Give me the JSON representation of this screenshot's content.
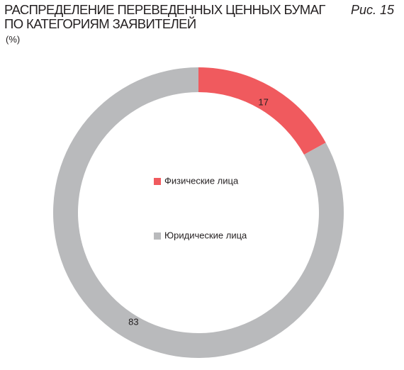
{
  "chart_data": {
    "type": "donut",
    "title": "РАСПРЕДЕЛЕНИЕ ПЕРЕВЕДЕННЫХ ЦЕННЫХ БУМАГ ПО КАТЕГОРИЯМ ЗАЯВИТЕЛЕЙ",
    "figure_label": "Рис. 15",
    "subtitle": "(%)",
    "categories": [
      "Физические лица",
      "Юридические лица"
    ],
    "values": [
      17,
      83
    ],
    "colors": [
      "#f05a5e",
      "#b9babc"
    ]
  }
}
